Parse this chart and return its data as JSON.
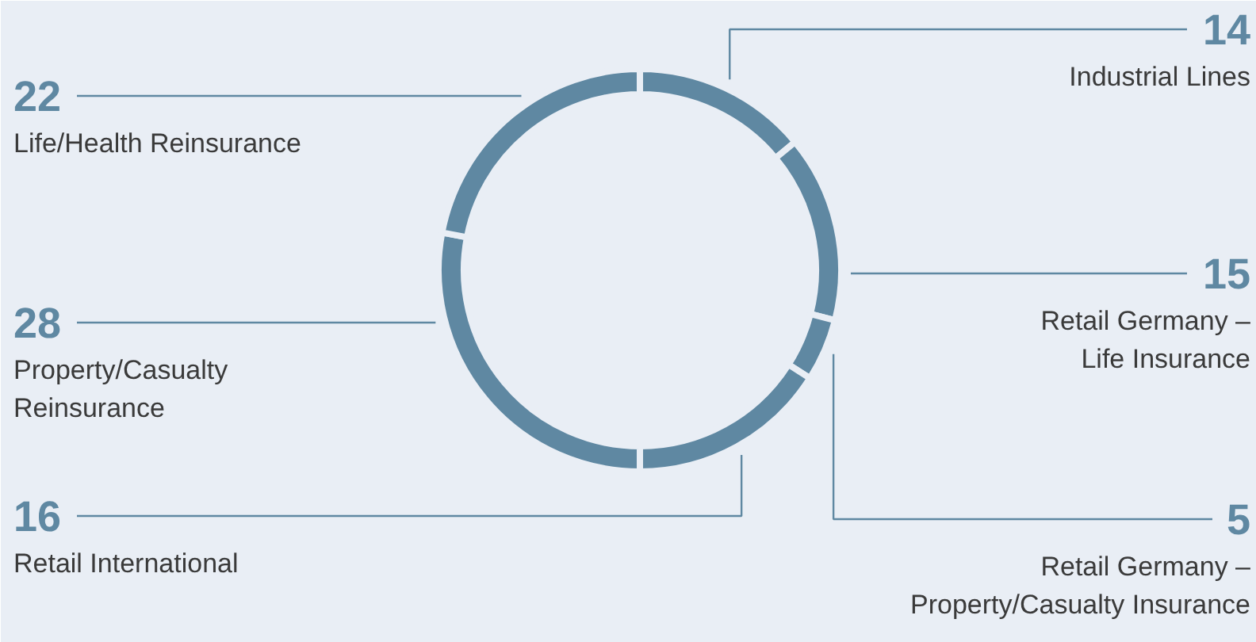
{
  "chart_data": {
    "type": "donut",
    "data_labels": true,
    "categories": [
      "Industrial Lines",
      "Retail Germany –\nLife Insurance",
      "Retail Germany –\nProperty/Casualty Insurance",
      "Retail International",
      "Property/Casualty\nReinsurance",
      "Life/Health Reinsurance"
    ],
    "values": [
      14,
      15,
      5,
      16,
      28,
      22
    ],
    "colors": [
      "#5f88a2",
      "#5f88a2",
      "#5f88a2",
      "#5f88a2",
      "#5f88a2",
      "#5f88a2"
    ]
  }
}
